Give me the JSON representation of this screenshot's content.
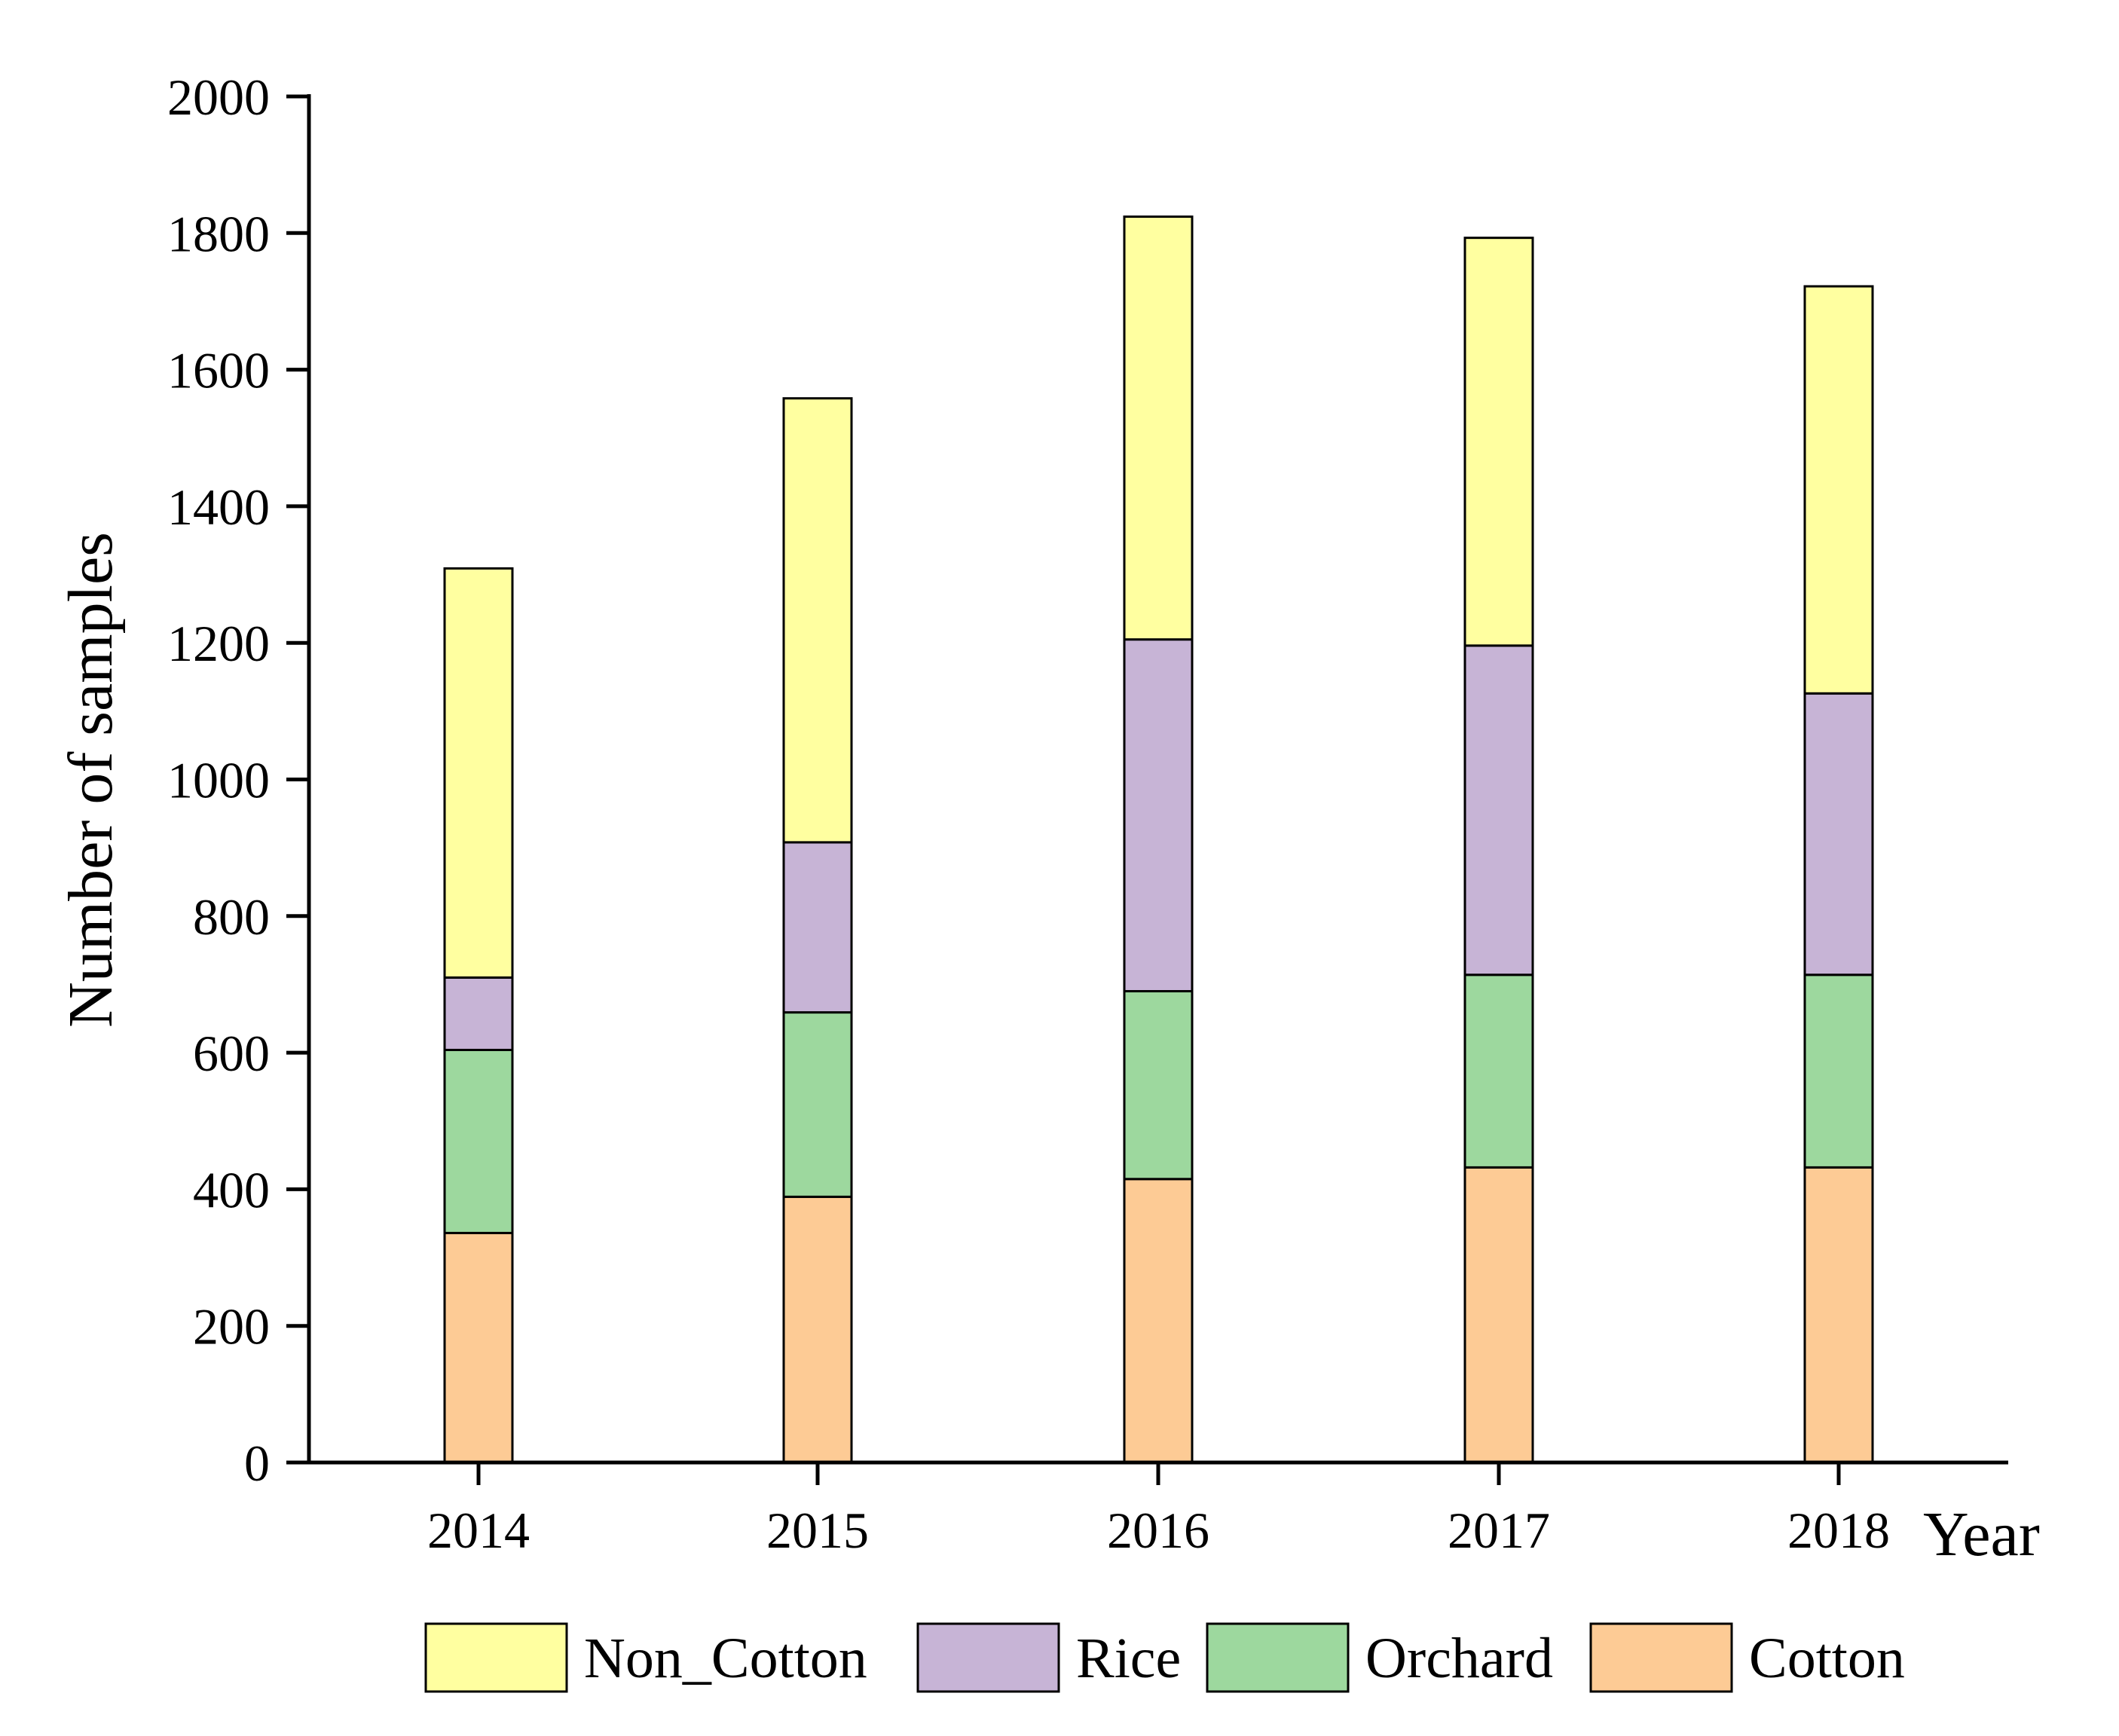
{
  "chart_data": {
    "type": "bar",
    "stacked": true,
    "categories": [
      "2014",
      "2015",
      "2016",
      "2017",
      "2018"
    ],
    "series": [
      {
        "name": "Cotton",
        "color": "#FDCB95",
        "values": [
          336,
          389,
          415,
          432,
          432
        ]
      },
      {
        "name": "Orchard",
        "color": "#9DD89E",
        "values": [
          268,
          270,
          275,
          282,
          282
        ]
      },
      {
        "name": "Rice",
        "color": "#C7B4D6",
        "values": [
          106,
          249,
          515,
          482,
          412
        ]
      },
      {
        "name": "Non_Cotton",
        "color": "#FFFFA0",
        "values": [
          599,
          650,
          619,
          597,
          596
        ]
      }
    ],
    "legend_order": [
      "Non_Cotton",
      "Rice",
      "Orchard",
      "Cotton"
    ],
    "xlabel": "Year",
    "ylabel": "Number of samples",
    "ylim": [
      0,
      2000
    ],
    "yticks": [
      "0",
      "200",
      "400",
      "600",
      "800",
      "1000",
      "1200",
      "1400",
      "1600",
      "1800",
      "2000"
    ],
    "grid": false,
    "legend_position": "bottom"
  }
}
